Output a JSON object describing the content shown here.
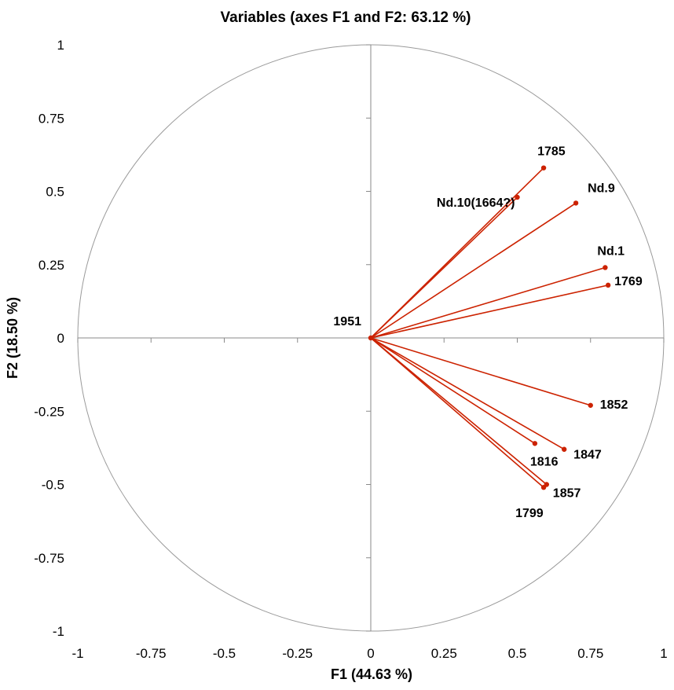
{
  "chart_data": {
    "type": "scatter",
    "title": "Variables (axes F1 and F2: 63.12 %)",
    "xlabel": "F1 (44.63 %)",
    "ylabel": "F2 (18.50 %)",
    "xlim": [
      -1,
      1
    ],
    "ylim": [
      -1,
      1
    ],
    "x_ticks": [
      "-1",
      "-0.75",
      "-0.5",
      "-0.25",
      "0",
      "0.25",
      "0.5",
      "0.75",
      "1"
    ],
    "y_ticks": [
      "1",
      "0.75",
      "0.5",
      "0.25",
      "0",
      "-0.25",
      "-0.5",
      "-0.75",
      "-1"
    ],
    "unit_circle": true,
    "vector_color": "#cc2200",
    "grid": false,
    "points": [
      {
        "label": "1785",
        "x": 0.59,
        "y": 0.58
      },
      {
        "label": "Nd.10(1664?)",
        "x": 0.5,
        "y": 0.48
      },
      {
        "label": "Nd.9",
        "x": 0.7,
        "y": 0.46
      },
      {
        "label": "Nd.1",
        "x": 0.8,
        "y": 0.24
      },
      {
        "label": "1769",
        "x": 0.81,
        "y": 0.18
      },
      {
        "label": "1951",
        "x": 0.0,
        "y": 0.0
      },
      {
        "label": "1852",
        "x": 0.75,
        "y": -0.23
      },
      {
        "label": "1847",
        "x": 0.66,
        "y": -0.38
      },
      {
        "label": "1816",
        "x": 0.56,
        "y": -0.36
      },
      {
        "label": "1857",
        "x": 0.6,
        "y": -0.5
      },
      {
        "label": "1799",
        "x": 0.59,
        "y": -0.51
      }
    ]
  }
}
